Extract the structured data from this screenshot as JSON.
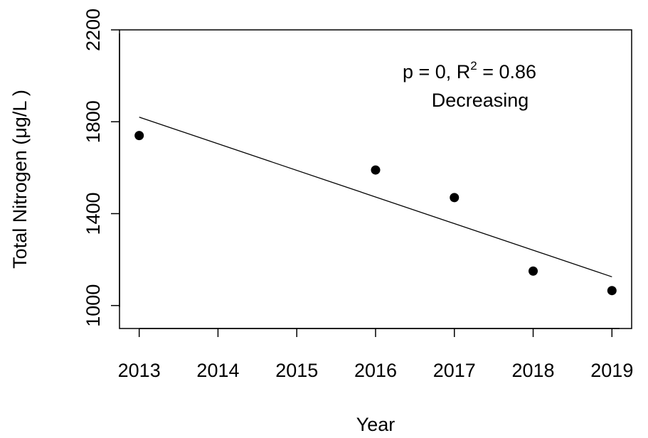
{
  "chart_data": {
    "type": "scatter",
    "title": "",
    "xlabel": "Year",
    "ylabel": "Total Nitrogen (μg/L )",
    "xlim": [
      2012.75,
      2019.25
    ],
    "ylim": [
      900,
      2200
    ],
    "x_ticks": [
      "2013",
      "2014",
      "2015",
      "2016",
      "2017",
      "2018",
      "2019"
    ],
    "y_ticks": [
      "1000",
      "1400",
      "1800",
      "2200"
    ],
    "grid": false,
    "points": [
      {
        "x": 2013,
        "y": 1740
      },
      {
        "x": 2016,
        "y": 1590
      },
      {
        "x": 2017,
        "y": 1470
      },
      {
        "x": 2018,
        "y": 1150
      },
      {
        "x": 2019,
        "y": 1065
      }
    ],
    "trend_line": {
      "x": [
        2013,
        2019
      ],
      "y": [
        1820,
        1125
      ]
    },
    "annotation": {
      "stat_prefix": "p = 0, R",
      "stat_sup": "2",
      "stat_suffix": " = 0.86",
      "trend_label": "Decreasing"
    }
  }
}
